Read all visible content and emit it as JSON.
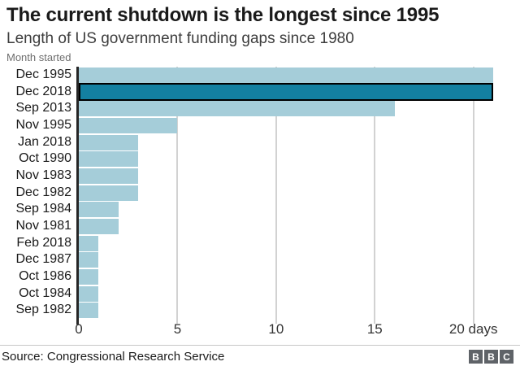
{
  "chart_data": {
    "type": "bar",
    "orientation": "horizontal",
    "title": "The current shutdown is the longest since 1995",
    "subtitle": "Length of US government funding gaps since 1980",
    "axis_note": "Month started",
    "categories": [
      "Dec 1995",
      "Dec 2018",
      "Sep 2013",
      "Nov 1995",
      "Jan 2018",
      "Oct 1990",
      "Nov 1983",
      "Dec 1982",
      "Sep 1984",
      "Nov 1981",
      "Feb 2018",
      "Dec 1987",
      "Oct 1986",
      "Oct 1984",
      "Sep 1982"
    ],
    "values": [
      21,
      21,
      16,
      5,
      3,
      3,
      3,
      3,
      2,
      2,
      1,
      1,
      1,
      1,
      1
    ],
    "unit": "days",
    "highlighted_category": "Dec 2018",
    "highlight_index": 1,
    "xlim": [
      0,
      21
    ],
    "x_ticks": [
      0,
      5,
      10,
      15,
      20
    ],
    "x_tick_labels": [
      "0",
      "5",
      "10",
      "15",
      "20 days"
    ],
    "grid": "vertical-gridlines",
    "legend": "none",
    "colors": {
      "bar": "#a5cdd9",
      "highlight": "#1380a1",
      "highlight_border": "#000000",
      "axis": "#262626",
      "gridline": "#d2d2d2"
    }
  },
  "footer": {
    "source": "Source: Congressional Research Service",
    "logo_letters": [
      "B",
      "B",
      "C"
    ]
  }
}
